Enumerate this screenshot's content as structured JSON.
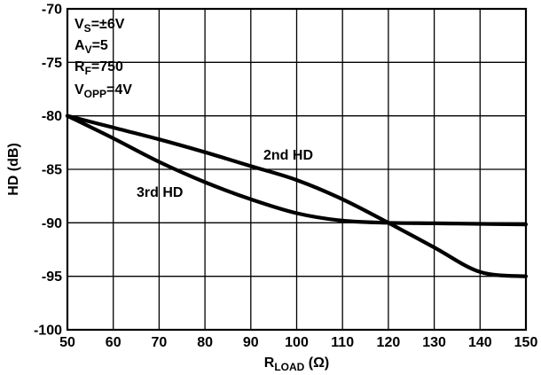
{
  "chart_data": {
    "type": "line",
    "xlabel": {
      "main": "R",
      "sub": "LOAD",
      "unit": " (Ω)"
    },
    "ylabel": "HD (dB)",
    "xlim": [
      50,
      150
    ],
    "ylim": [
      -100,
      -70
    ],
    "x_ticks": [
      "50",
      "60",
      "70",
      "80",
      "90",
      "100",
      "110",
      "120",
      "130",
      "140",
      "150"
    ],
    "y_ticks": [
      "-70",
      "-75",
      "-80",
      "-85",
      "-90",
      "-95",
      "-100"
    ],
    "grid": true,
    "annotations": [
      {
        "main": "V",
        "sub": "S",
        "rest": "=±6V"
      },
      {
        "main": "A",
        "sub": "V",
        "rest": "=5"
      },
      {
        "main": "R",
        "sub": "F",
        "rest": "=750"
      },
      {
        "main": "V",
        "sub": "OPP",
        "rest": "=4V"
      }
    ],
    "series": [
      {
        "name": "2nd HD",
        "x": [
          50,
          60,
          70,
          80,
          90,
          100,
          110,
          120,
          130,
          140,
          150
        ],
        "y": [
          -80,
          -81.1,
          -82.2,
          -83.4,
          -84.7,
          -86.0,
          -87.8,
          -90.0,
          -92.3,
          -94.6,
          -95.0
        ]
      },
      {
        "name": "3rd HD",
        "x": [
          50,
          60,
          70,
          80,
          90,
          100,
          110,
          120,
          130,
          140,
          150
        ],
        "y": [
          -80,
          -82.1,
          -84.3,
          -86.2,
          -87.8,
          -89.1,
          -89.8,
          -90.0,
          -90.05,
          -90.1,
          -90.15
        ]
      }
    ]
  }
}
